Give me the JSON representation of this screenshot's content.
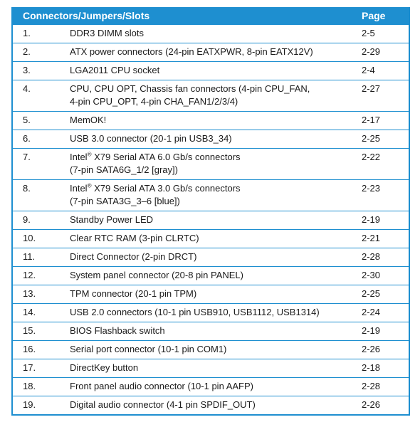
{
  "header": {
    "title": "Connectors/Jumpers/Slots",
    "page": "Page"
  },
  "rows": [
    {
      "num": "1.",
      "line1": "DDR3 DIMM slots",
      "page": "2-5"
    },
    {
      "num": "2.",
      "line1": "ATX power connectors (24-pin EATXPWR, 8-pin EATX12V)",
      "page": "2-29"
    },
    {
      "num": "3.",
      "line1": "LGA2011 CPU socket",
      "page": "2-4"
    },
    {
      "num": "4.",
      "line1": "CPU, CPU OPT, Chassis fan connectors (4-pin CPU_FAN,",
      "line2": "4-pin CPU_OPT, 4-pin CHA_FAN1/2/3/4)",
      "page": "2-27"
    },
    {
      "num": "5.",
      "line1": "MemOK!",
      "page": "2-17"
    },
    {
      "num": "6.",
      "line1": "USB 3.0 connector (20-1 pin USB3_34)",
      "page": "2-25"
    },
    {
      "num": "7.",
      "brand": "Intel",
      "reg": "®",
      "line1": " X79 Serial ATA 6.0 Gb/s connectors",
      "line2": "(7-pin SATA6G_1/2 [gray])",
      "page": "2-22"
    },
    {
      "num": "8.",
      "brand": "Intel",
      "reg": "®",
      "line1": " X79 Serial ATA 3.0 Gb/s connectors",
      "line2": "(7-pin SATA3G_3–6 [blue])",
      "page": "2-23"
    },
    {
      "num": "9.",
      "line1": "Standby Power LED",
      "page": "2-19"
    },
    {
      "num": "10.",
      "line1": "Clear RTC RAM (3-pin CLRTC)",
      "page": "2-21"
    },
    {
      "num": "11.",
      "line1": "Direct Connector (2-pin DRCT)",
      "page": "2-28"
    },
    {
      "num": "12.",
      "line1": "System panel connector (20-8 pin PANEL)",
      "page": "2-30"
    },
    {
      "num": "13.",
      "line1": "TPM connector (20-1 pin TPM)",
      "page": "2-25"
    },
    {
      "num": "14.",
      "line1": "USB 2.0 connectors (10-1 pin USB910, USB1112, USB1314)",
      "page": "2-24"
    },
    {
      "num": "15.",
      "line1": "BIOS Flashback switch",
      "page": "2-19"
    },
    {
      "num": "16.",
      "line1": "Serial port connector (10-1 pin COM1)",
      "page": "2-26"
    },
    {
      "num": "17.",
      "line1": "DirectKey button",
      "page": "2-18"
    },
    {
      "num": "18.",
      "line1": "Front panel audio connector (10-1 pin AAFP)",
      "page": "2-28"
    },
    {
      "num": "19.",
      "line1": "Digital audio connector (4-1 pin SPDIF_OUT)",
      "page": "2-26"
    }
  ],
  "colors": {
    "accent": "#1e8fd0",
    "text": "#1a1a1a",
    "header_text": "#ffffff"
  }
}
